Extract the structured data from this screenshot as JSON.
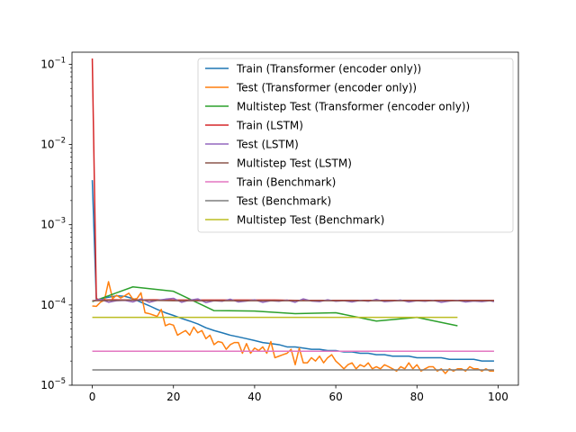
{
  "chart_data": {
    "type": "line",
    "title": "",
    "xlabel": "",
    "ylabel": "",
    "yscale": "log",
    "xlim": [
      -5,
      105
    ],
    "ylim_log10": [
      -5.0,
      -0.85
    ],
    "ylim": [
      1e-05,
      0.1413
    ],
    "grid": false,
    "legend_placement": "upper right",
    "x_ticks": [
      0,
      20,
      40,
      60,
      80,
      100
    ],
    "x_tick_labels": [
      "0",
      "20",
      "40",
      "60",
      "80",
      "100"
    ],
    "y_ticks": [
      1e-05,
      0.0001,
      0.001,
      0.01,
      0.1
    ],
    "y_tick_labels": [
      {
        "base": "10",
        "exp": "−5"
      },
      {
        "base": "10",
        "exp": "−4"
      },
      {
        "base": "10",
        "exp": "−3"
      },
      {
        "base": "10",
        "exp": "−2"
      },
      {
        "base": "10",
        "exp": "−1"
      }
    ],
    "series": [
      {
        "name": "Train (Transformer (encoder only))",
        "color": "#1f77b4",
        "x": [
          0,
          1,
          2,
          4,
          6,
          8,
          10,
          12,
          14,
          16,
          18,
          20,
          22,
          24,
          26,
          28,
          30,
          32,
          34,
          36,
          38,
          40,
          42,
          44,
          46,
          48,
          50,
          52,
          54,
          56,
          58,
          60,
          62,
          64,
          66,
          68,
          70,
          72,
          74,
          76,
          78,
          80,
          82,
          84,
          86,
          88,
          90,
          92,
          94,
          96,
          98,
          99
        ],
        "y": [
          0.0036,
          0.000115,
          0.000118,
          0.000125,
          0.00013,
          0.000128,
          0.00012,
          0.000108,
          9.8e-05,
          8.8e-05,
          8e-05,
          7.4e-05,
          6.8e-05,
          6.3e-05,
          5.8e-05,
          5.2e-05,
          4.8e-05,
          4.5e-05,
          4.2e-05,
          4e-05,
          3.8e-05,
          3.6e-05,
          3.4e-05,
          3.3e-05,
          3.2e-05,
          3e-05,
          3e-05,
          2.9e-05,
          2.8e-05,
          2.8e-05,
          2.7e-05,
          2.7e-05,
          2.6e-05,
          2.6e-05,
          2.5e-05,
          2.5e-05,
          2.4e-05,
          2.4e-05,
          2.3e-05,
          2.3e-05,
          2.3e-05,
          2.2e-05,
          2.2e-05,
          2.2e-05,
          2.2e-05,
          2.1e-05,
          2.1e-05,
          2.1e-05,
          2.1e-05,
          2e-05,
          2e-05,
          2e-05
        ]
      },
      {
        "name": "Test (Transformer (encoder only))",
        "color": "#ff7f0e",
        "x": [
          0,
          1,
          2,
          3,
          4,
          5,
          6,
          7,
          8,
          9,
          10,
          11,
          12,
          13,
          14,
          15,
          16,
          17,
          18,
          19,
          20,
          21,
          22,
          23,
          24,
          25,
          26,
          27,
          28,
          29,
          30,
          31,
          32,
          33,
          34,
          35,
          36,
          37,
          38,
          39,
          40,
          41,
          42,
          43,
          44,
          45,
          46,
          47,
          48,
          49,
          50,
          51,
          52,
          53,
          54,
          55,
          56,
          57,
          58,
          59,
          60,
          61,
          62,
          63,
          64,
          65,
          66,
          67,
          68,
          69,
          70,
          71,
          72,
          73,
          74,
          75,
          76,
          77,
          78,
          79,
          80,
          81,
          82,
          83,
          84,
          85,
          86,
          87,
          88,
          89,
          90,
          91,
          92,
          93,
          94,
          95,
          96,
          97,
          98,
          99
        ],
        "y": [
          9.7e-05,
          9.6e-05,
          0.000108,
          0.000115,
          0.000195,
          0.00012,
          0.000132,
          0.000122,
          0.00013,
          0.00014,
          0.000118,
          0.00012,
          0.000142,
          8e-05,
          7.8e-05,
          7.5e-05,
          7.2e-05,
          8.8e-05,
          5.5e-05,
          5.8e-05,
          5.6e-05,
          4.2e-05,
          4.5e-05,
          4.8e-05,
          4.2e-05,
          5.3e-05,
          4.5e-05,
          4.8e-05,
          3.8e-05,
          4.2e-05,
          3.2e-05,
          3.5e-05,
          3.4e-05,
          2.8e-05,
          3.2e-05,
          3.4e-05,
          3.4e-05,
          2.5e-05,
          3.3e-05,
          2.5e-05,
          2.9e-05,
          2.7e-05,
          3e-05,
          2.5e-05,
          3.5e-05,
          2.2e-05,
          2.3e-05,
          2.4e-05,
          2.5e-05,
          2.8e-05,
          1.8e-05,
          2.9e-05,
          1.9e-05,
          1.9e-05,
          2.2e-05,
          2e-05,
          2.3e-05,
          1.9e-05,
          2.2e-05,
          2.4e-05,
          2e-05,
          1.8e-05,
          1.6e-05,
          1.8e-05,
          1.9e-05,
          1.6e-05,
          1.8e-05,
          1.7e-05,
          1.9e-05,
          1.6e-05,
          1.7e-05,
          1.6e-05,
          1.8e-05,
          1.7e-05,
          1.6e-05,
          1.5e-05,
          1.7e-05,
          1.6e-05,
          1.9e-05,
          1.6e-05,
          1.8e-05,
          1.5e-05,
          1.6e-05,
          1.7e-05,
          1.7e-05,
          1.5e-05,
          1.6e-05,
          1.4e-05,
          1.6e-05,
          1.5e-05,
          1.6e-05,
          1.6e-05,
          1.5e-05,
          1.7e-05,
          1.6e-05,
          1.6e-05,
          1.5e-05,
          1.6e-05,
          1.5e-05,
          1.5e-05
        ]
      },
      {
        "name": "Multistep Test (Transformer (encoder only))",
        "color": "#2ca02c",
        "x": [
          0,
          10,
          20,
          30,
          40,
          50,
          60,
          70,
          80,
          90
        ],
        "y": [
          0.00011,
          0.000168,
          0.000148,
          8.5e-05,
          8.4e-05,
          7.8e-05,
          8e-05,
          6.3e-05,
          7e-05,
          5.5e-05
        ]
      },
      {
        "name": "Train (LSTM)",
        "color": "#d62728",
        "x": [
          0,
          1,
          2,
          5,
          10,
          15,
          20,
          25,
          30,
          35,
          40,
          45,
          50,
          55,
          60,
          65,
          70,
          75,
          80,
          85,
          90,
          95,
          99
        ],
        "y": [
          0.118,
          0.00012,
          0.000115,
          0.000116,
          0.000115,
          0.000116,
          0.000115,
          0.000115,
          0.000115,
          0.000115,
          0.000115,
          0.000115,
          0.000114,
          0.000114,
          0.000114,
          0.000114,
          0.000114,
          0.000114,
          0.000114,
          0.000114,
          0.000114,
          0.000114,
          0.000114
        ]
      },
      {
        "name": "Test (LSTM)",
        "color": "#9467bd",
        "x": [
          0,
          2,
          4,
          6,
          8,
          10,
          12,
          14,
          16,
          18,
          20,
          22,
          24,
          26,
          28,
          30,
          32,
          34,
          36,
          38,
          40,
          42,
          44,
          46,
          48,
          50,
          52,
          54,
          56,
          58,
          60,
          62,
          64,
          66,
          68,
          70,
          72,
          74,
          76,
          78,
          80,
          82,
          84,
          86,
          88,
          90,
          92,
          94,
          96,
          98,
          99
        ],
        "y": [
          0.000112,
          0.000118,
          0.000108,
          0.000113,
          0.000114,
          0.000109,
          0.000119,
          0.000108,
          0.000114,
          0.000118,
          0.000121,
          0.000108,
          0.000115,
          0.000119,
          0.000107,
          0.000113,
          0.000111,
          0.000118,
          0.000109,
          0.000112,
          0.000116,
          0.000108,
          0.000113,
          0.000111,
          0.000115,
          0.000108,
          0.000119,
          0.000112,
          0.00011,
          0.000116,
          0.000111,
          0.000113,
          0.000109,
          0.000114,
          0.000111,
          0.000117,
          0.00011,
          0.000112,
          0.000115,
          0.000109,
          0.000113,
          0.000111,
          0.000114,
          0.000108,
          0.000112,
          0.000114,
          0.000109,
          0.000112,
          0.00011,
          0.000113,
          0.00011
        ]
      },
      {
        "name": "Multistep Test (LSTM)",
        "color": "#8c564b",
        "x": [
          0,
          10,
          20,
          30,
          40,
          50,
          60,
          70,
          80,
          90,
          99
        ],
        "y": [
          0.000113,
          0.000115,
          0.000113,
          0.000113,
          0.000113,
          0.000113,
          0.000113,
          0.000113,
          0.000113,
          0.000113,
          0.000113
        ]
      },
      {
        "name": "Train (Benchmark)",
        "color": "#e377c2",
        "x": [
          0,
          99
        ],
        "y": [
          2.65e-05,
          2.65e-05
        ]
      },
      {
        "name": "Test (Benchmark)",
        "color": "#7f7f7f",
        "x": [
          0,
          99
        ],
        "y": [
          1.55e-05,
          1.55e-05
        ]
      },
      {
        "name": "Multistep Test (Benchmark)",
        "color": "#bcbd22",
        "x": [
          0,
          90
        ],
        "y": [
          7e-05,
          7e-05
        ]
      }
    ]
  }
}
